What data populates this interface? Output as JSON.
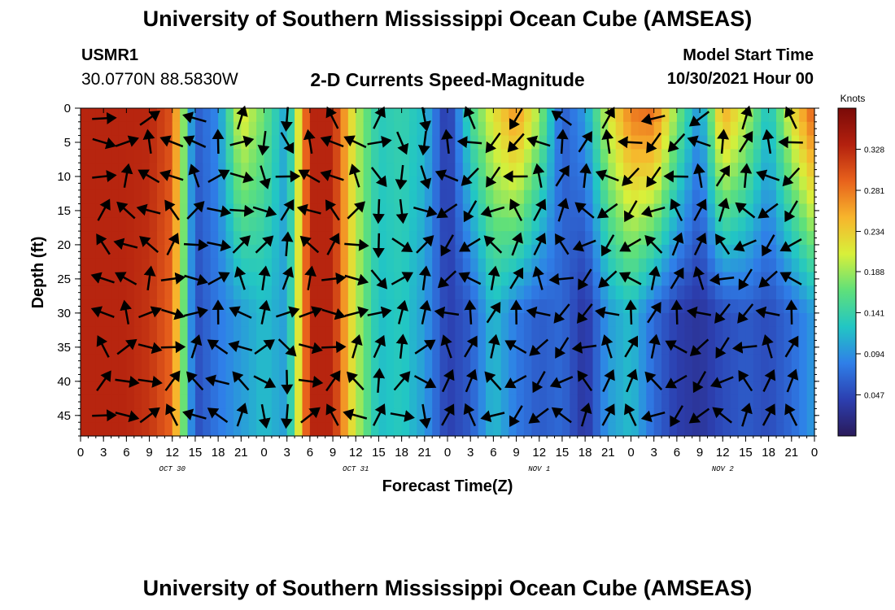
{
  "header": {
    "title": "University of Southern Mississippi Ocean Cube (AMSEAS)",
    "station": "USMR1",
    "coordinates": "30.0770N  88.5830W",
    "subtitle": "2-D Currents Speed-Magnitude",
    "model_start_label": "Model Start Time",
    "model_start_value": "10/30/2021 Hour 00"
  },
  "footer": {
    "title": "University of Southern Mississippi Ocean Cube (AMSEAS)"
  },
  "chart_data": {
    "type": "heatmap",
    "title": "2-D Currents Speed-Magnitude",
    "xlabel": "Forecast Time(Z)",
    "ylabel": "Depth (ft)",
    "x_hours": [
      0,
      96
    ],
    "x_ticks": [
      "0",
      "3",
      "6",
      "9",
      "12",
      "15",
      "18",
      "21",
      "0",
      "3",
      "6",
      "9",
      "12",
      "15",
      "18",
      "21",
      "0",
      "3",
      "6",
      "9",
      "12",
      "15",
      "18",
      "21",
      "0",
      "3",
      "6",
      "9",
      "12",
      "15",
      "18",
      "21",
      "0"
    ],
    "day_labels": [
      "OCT 30",
      "OCT 31",
      "NOV 1",
      "NOV 2"
    ],
    "ylim": [
      0,
      48
    ],
    "y_ticks": [
      "0",
      "5",
      "10",
      "15",
      "20",
      "25",
      "30",
      "35",
      "40",
      "45"
    ],
    "colorbar": {
      "units": "Knots",
      "range": [
        0.0,
        0.375
      ],
      "ticks": [
        "0.328",
        "0.281",
        "0.234",
        "0.188",
        "0.141",
        "0.094",
        "0.047"
      ],
      "colors": [
        "#2a1a5a",
        "#2c3fb0",
        "#2f7fe8",
        "#22c6c4",
        "#5fe07a",
        "#d8f03a",
        "#f7b52c",
        "#e8621c",
        "#b3200e",
        "#7a0a08"
      ]
    },
    "speed_profile_surface": [
      0.33,
      0.33,
      0.33,
      0.33,
      0.3,
      0.06,
      0.09,
      0.22,
      0.17,
      0.1,
      0.33,
      0.33,
      0.2,
      0.13,
      0.14,
      0.12,
      0.03,
      0.15,
      0.22,
      0.27,
      0.19,
      0.06,
      0.1,
      0.21,
      0.28,
      0.29,
      0.18,
      0.09,
      0.26,
      0.2,
      0.12,
      0.22,
      0.3
    ],
    "speed_profile_deep": [
      0.33,
      0.33,
      0.33,
      0.32,
      0.29,
      0.05,
      0.08,
      0.1,
      0.12,
      0.1,
      0.33,
      0.33,
      0.2,
      0.12,
      0.13,
      0.1,
      0.04,
      0.06,
      0.12,
      0.08,
      0.06,
      0.07,
      0.03,
      0.1,
      0.12,
      0.07,
      0.04,
      0.03,
      0.05,
      0.06,
      0.05,
      0.07,
      0.1
    ],
    "vectors": "current direction arrows at 3-hour intervals and ~5 ft depth spacing"
  }
}
